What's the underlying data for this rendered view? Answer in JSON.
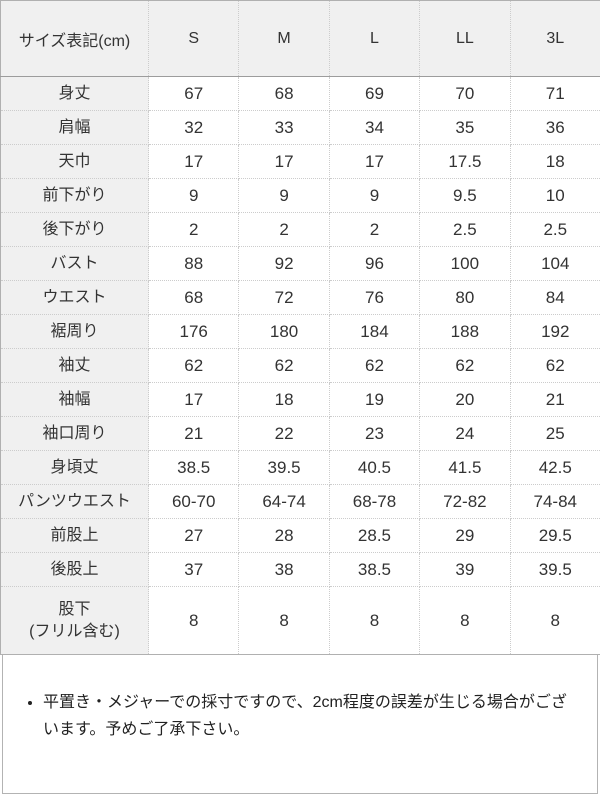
{
  "table": {
    "header": {
      "label": "サイズ表記(cm)",
      "sizes": [
        "S",
        "M",
        "L",
        "LL",
        "3L"
      ]
    },
    "rows": [
      {
        "label": "身丈",
        "values": [
          "67",
          "68",
          "69",
          "70",
          "71"
        ]
      },
      {
        "label": "肩幅",
        "values": [
          "32",
          "33",
          "34",
          "35",
          "36"
        ]
      },
      {
        "label": "天巾",
        "values": [
          "17",
          "17",
          "17",
          "17.5",
          "18"
        ]
      },
      {
        "label": "前下がり",
        "values": [
          "9",
          "9",
          "9",
          "9.5",
          "10"
        ]
      },
      {
        "label": "後下がり",
        "values": [
          "2",
          "2",
          "2",
          "2.5",
          "2.5"
        ]
      },
      {
        "label": "バスト",
        "values": [
          "88",
          "92",
          "96",
          "100",
          "104"
        ]
      },
      {
        "label": "ウエスト",
        "values": [
          "68",
          "72",
          "76",
          "80",
          "84"
        ]
      },
      {
        "label": "裾周り",
        "values": [
          "176",
          "180",
          "184",
          "188",
          "192"
        ]
      },
      {
        "label": "袖丈",
        "values": [
          "62",
          "62",
          "62",
          "62",
          "62"
        ]
      },
      {
        "label": "袖幅",
        "values": [
          "17",
          "18",
          "19",
          "20",
          "21"
        ]
      },
      {
        "label": "袖口周り",
        "values": [
          "21",
          "22",
          "23",
          "24",
          "25"
        ]
      },
      {
        "label": "身頃丈",
        "values": [
          "38.5",
          "39.5",
          "40.5",
          "41.5",
          "42.5"
        ]
      },
      {
        "label": "パンツウエスト",
        "values": [
          "60-70",
          "64-74",
          "68-78",
          "72-82",
          "74-84"
        ]
      },
      {
        "label": "前股上",
        "values": [
          "27",
          "28",
          "28.5",
          "29",
          "29.5"
        ]
      },
      {
        "label": "後股上",
        "values": [
          "37",
          "38",
          "38.5",
          "39",
          "39.5"
        ]
      },
      {
        "label": "股下\n(フリル含む)",
        "values": [
          "8",
          "8",
          "8",
          "8",
          "8"
        ],
        "tall": true
      }
    ]
  },
  "note": {
    "text": "平置き・メジャーでの採寸ですので、2cm程度の誤差が生じる場合がございます。予めご了承下さい。"
  },
  "colors": {
    "header_background": "#f0f0f0",
    "cell_background": "#ffffff",
    "outer_border": "#b0b0b0",
    "inner_dotted_border": "#cccccc",
    "header_separator": "#9c9c9c",
    "text": "#333333"
  }
}
